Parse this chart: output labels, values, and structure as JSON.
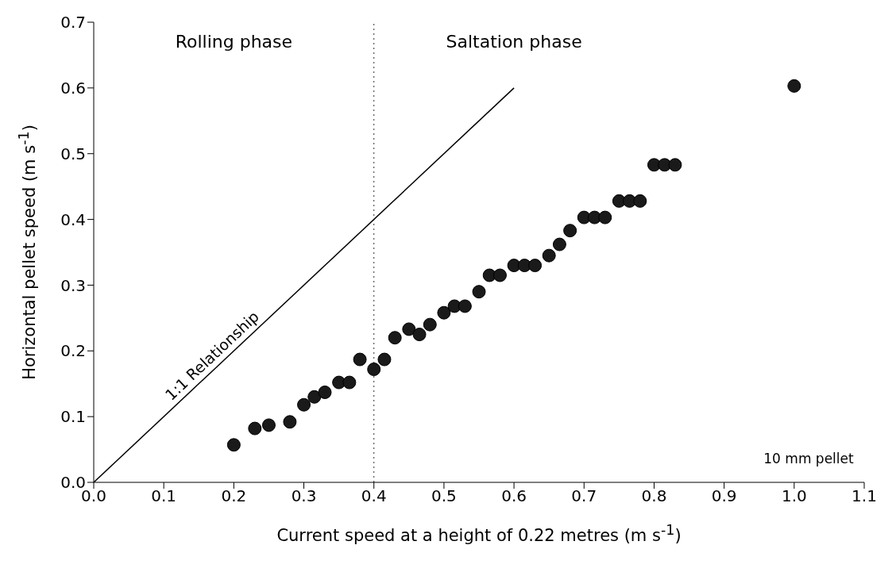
{
  "chart_data": {
    "type": "scatter",
    "xlabel": "Current speed at a height of 0.22 metres (m s$^{-1}$)",
    "ylabel": "Horizontal pellet speed (m s$^{-1}$)",
    "xlim": [
      0,
      1.1
    ],
    "ylim": [
      0,
      0.7
    ],
    "xticks": [
      {
        "value": 0,
        "label": "0.0"
      },
      0.1,
      0.2,
      0.3,
      0.4,
      0.5,
      0.6,
      0.7,
      0.8,
      0.9,
      {
        "value": 1,
        "label": "1.0"
      },
      1.1
    ],
    "yticks": [
      {
        "value": 0,
        "label": "0.0"
      },
      0.1,
      0.2,
      0.3,
      0.4,
      0.5,
      0.6,
      0.7
    ],
    "marker": "circle",
    "series": [
      {
        "color": "#1a1a1a",
        "x": [
          0.2,
          0.23,
          0.25,
          0.28,
          0.3,
          0.315,
          0.33,
          0.35,
          0.365,
          0.38,
          0.4,
          0.415,
          0.43,
          0.45,
          0.465,
          0.48,
          0.5,
          0.515,
          0.53,
          0.55,
          0.565,
          0.58,
          0.6,
          0.615,
          0.63,
          0.65,
          0.665,
          0.68,
          0.7,
          0.715,
          0.73,
          0.75,
          0.765,
          0.78,
          0.8,
          0.815,
          0.83,
          1.0
        ],
        "values": [
          0.057,
          0.082,
          0.087,
          0.092,
          0.118,
          0.13,
          0.137,
          0.152,
          0.152,
          0.187,
          0.172,
          0.187,
          0.22,
          0.233,
          0.225,
          0.24,
          0.258,
          0.268,
          0.268,
          0.29,
          0.315,
          0.315,
          0.33,
          0.33,
          0.33,
          0.345,
          0.362,
          0.383,
          0.403,
          0.403,
          0.403,
          0.428,
          0.428,
          0.428,
          0.483,
          0.483,
          0.483,
          0.603
        ]
      },
      {
        "type": "line",
        "name": "1:1 Relationship",
        "color": "#000000",
        "marker": "none",
        "line_style": "solid",
        "x": [
          0,
          0.6
        ],
        "values": [
          0,
          0.6
        ]
      }
    ],
    "ref_lines": [
      {
        "axis": "x",
        "value": 0.4,
        "color": "#333333",
        "line_style": "dotted"
      }
    ],
    "annotations": [
      "Rolling phase",
      "Saltation phase",
      "10 mm pellet"
    ]
  }
}
